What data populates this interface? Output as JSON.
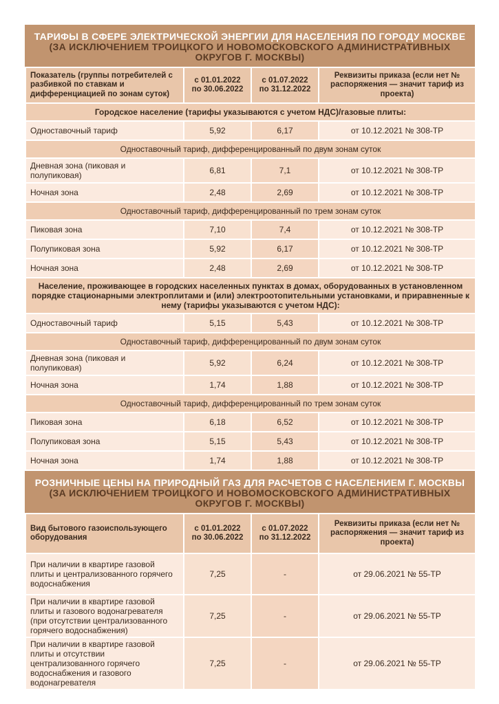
{
  "electricity": {
    "title_main": "ТАРИФЫ В СФЕРЕ ЭЛЕКТРИЧЕСКОЙ ЭНЕРГИИ ДЛЯ НАСЕЛЕНИЯ ПО ГОРОДУ МОСКВЕ",
    "title_sub": "(ЗА ИСКЛЮЧЕНИЕМ ТРОИЦКОГО И НОВОМОСКОВСКОГО АДМИНИСТРАТИВНЫХ ОКРУГОВ Г. МОСКВЫ)",
    "headers": [
      "Показатель (группы потребителей с разбивкой по ставкам и дифференциацией по зонам суток)",
      "с 01.01.2022 по 30.06.2022",
      "с 01.07.2022 по 31.12.2022",
      "Реквизиты приказа (если нет № распоряжения — значит тариф из проекта)"
    ],
    "rows": [
      {
        "section": "Городское население (тарифы указываются с учетом НДС)/газовые плиты:",
        "bold": true
      },
      {
        "cells": [
          "Одноставочный тариф",
          "5,92",
          "6,17",
          "от 10.12.2021 № 308-ТР"
        ]
      },
      {
        "section": "Одноставочный тариф, дифференцированный по двум зонам суток"
      },
      {
        "cells": [
          "Дневная зона (пиковая и полупиковая)",
          "6,81",
          "7,1",
          "от 10.12.2021 № 308-ТР"
        ]
      },
      {
        "cells": [
          "Ночная зона",
          "2,48",
          "2,69",
          "от 10.12.2021 № 308-ТР"
        ]
      },
      {
        "section": "Одноставочный тариф, дифференцированный по трем зонам суток"
      },
      {
        "cells": [
          "Пиковая зона",
          "7,10",
          "7,4",
          "от 10.12.2021 № 308-ТР"
        ]
      },
      {
        "cells": [
          "Полупиковая зона",
          "5,92",
          "6,17",
          "от 10.12.2021 № 308-ТР"
        ]
      },
      {
        "cells": [
          "Ночная зона",
          "2,48",
          "2,69",
          "от 10.12.2021 № 308-ТР"
        ]
      },
      {
        "section": "Население, проживающее в городских населенных пунктах в домах, оборудованных в установленном порядке стационарными электроплитами и (или) электроотопительными установками, и приравненные к нему (тарифы указываются с учетом НДС):",
        "bold": true
      },
      {
        "cells": [
          "Одноставочный тариф",
          "5,15",
          "5,43",
          "от 10.12.2021 № 308-ТР"
        ]
      },
      {
        "section": "Одноставочный тариф, дифференцированный по двум зонам суток"
      },
      {
        "cells": [
          "Дневная зона (пиковая и полупиковая)",
          "5,92",
          "6,24",
          "от 10.12.2021 № 308-ТР"
        ]
      },
      {
        "cells": [
          "Ночная зона",
          "1,74",
          "1,88",
          "от 10.12.2021 № 308-ТР"
        ]
      },
      {
        "section": "Одноставочный тариф, дифференцированный по трем зонам суток"
      },
      {
        "cells": [
          "Пиковая зона",
          "6,18",
          "6,52",
          "от 10.12.2021 № 308-ТР"
        ]
      },
      {
        "cells": [
          "Полупиковая зона",
          "5,15",
          "5,43",
          "от 10.12.2021 № 308-ТР"
        ]
      },
      {
        "cells": [
          "Ночная зона",
          "1,74",
          "1,88",
          "от 10.12.2021 № 308-ТР"
        ]
      }
    ]
  },
  "gas": {
    "title_main": "РОЗНИЧНЫЕ ЦЕНЫ НА ПРИРОДНЫЙ ГАЗ ДЛЯ РАСЧЕТОВ С НАСЕЛЕНИЕМ Г. МОСКВЫ",
    "title_sub": "(ЗА ИСКЛЮЧЕНИЕМ ТРОИЦКОГО И НОВОМОСКОВСКОГО АДМИНИСТРАТИВНЫХ ОКРУГОВ Г. МОСКВЫ)",
    "headers": [
      "Вид бытового газоиспользующего оборудования",
      "с 01.01.2022 по 30.06.2022",
      "с 01.07.2022 по 31.12.2022",
      "Реквизиты приказа (если нет № распоряжения — значит тариф из проекта)"
    ],
    "rows": [
      {
        "cells": [
          "При наличии в квартире газовой плиты и централизованного горячего водоснабжения",
          "7,25",
          "-",
          "от 29.06.2021 № 55-ТР"
        ]
      },
      {
        "cells": [
          "При наличии в квартире газовой плиты и газового водонагревателя (при отсутствии централизованного горячего водоснабжения)",
          "7,25",
          "-",
          "от 29.06.2021 № 55-ТР"
        ]
      },
      {
        "cells": [
          "При наличии в квартире газовой плиты и отсутствии централизованного горячего водоснабжения и газового водонагревателя",
          "7,25",
          "-",
          "от 29.06.2021 № 55-ТР"
        ]
      }
    ]
  },
  "colors": {
    "title_bg": "#c1946f",
    "header_bg": "#e9c6aa",
    "section_bg": "#efcdb3",
    "row_bg": "#fbeadf"
  }
}
